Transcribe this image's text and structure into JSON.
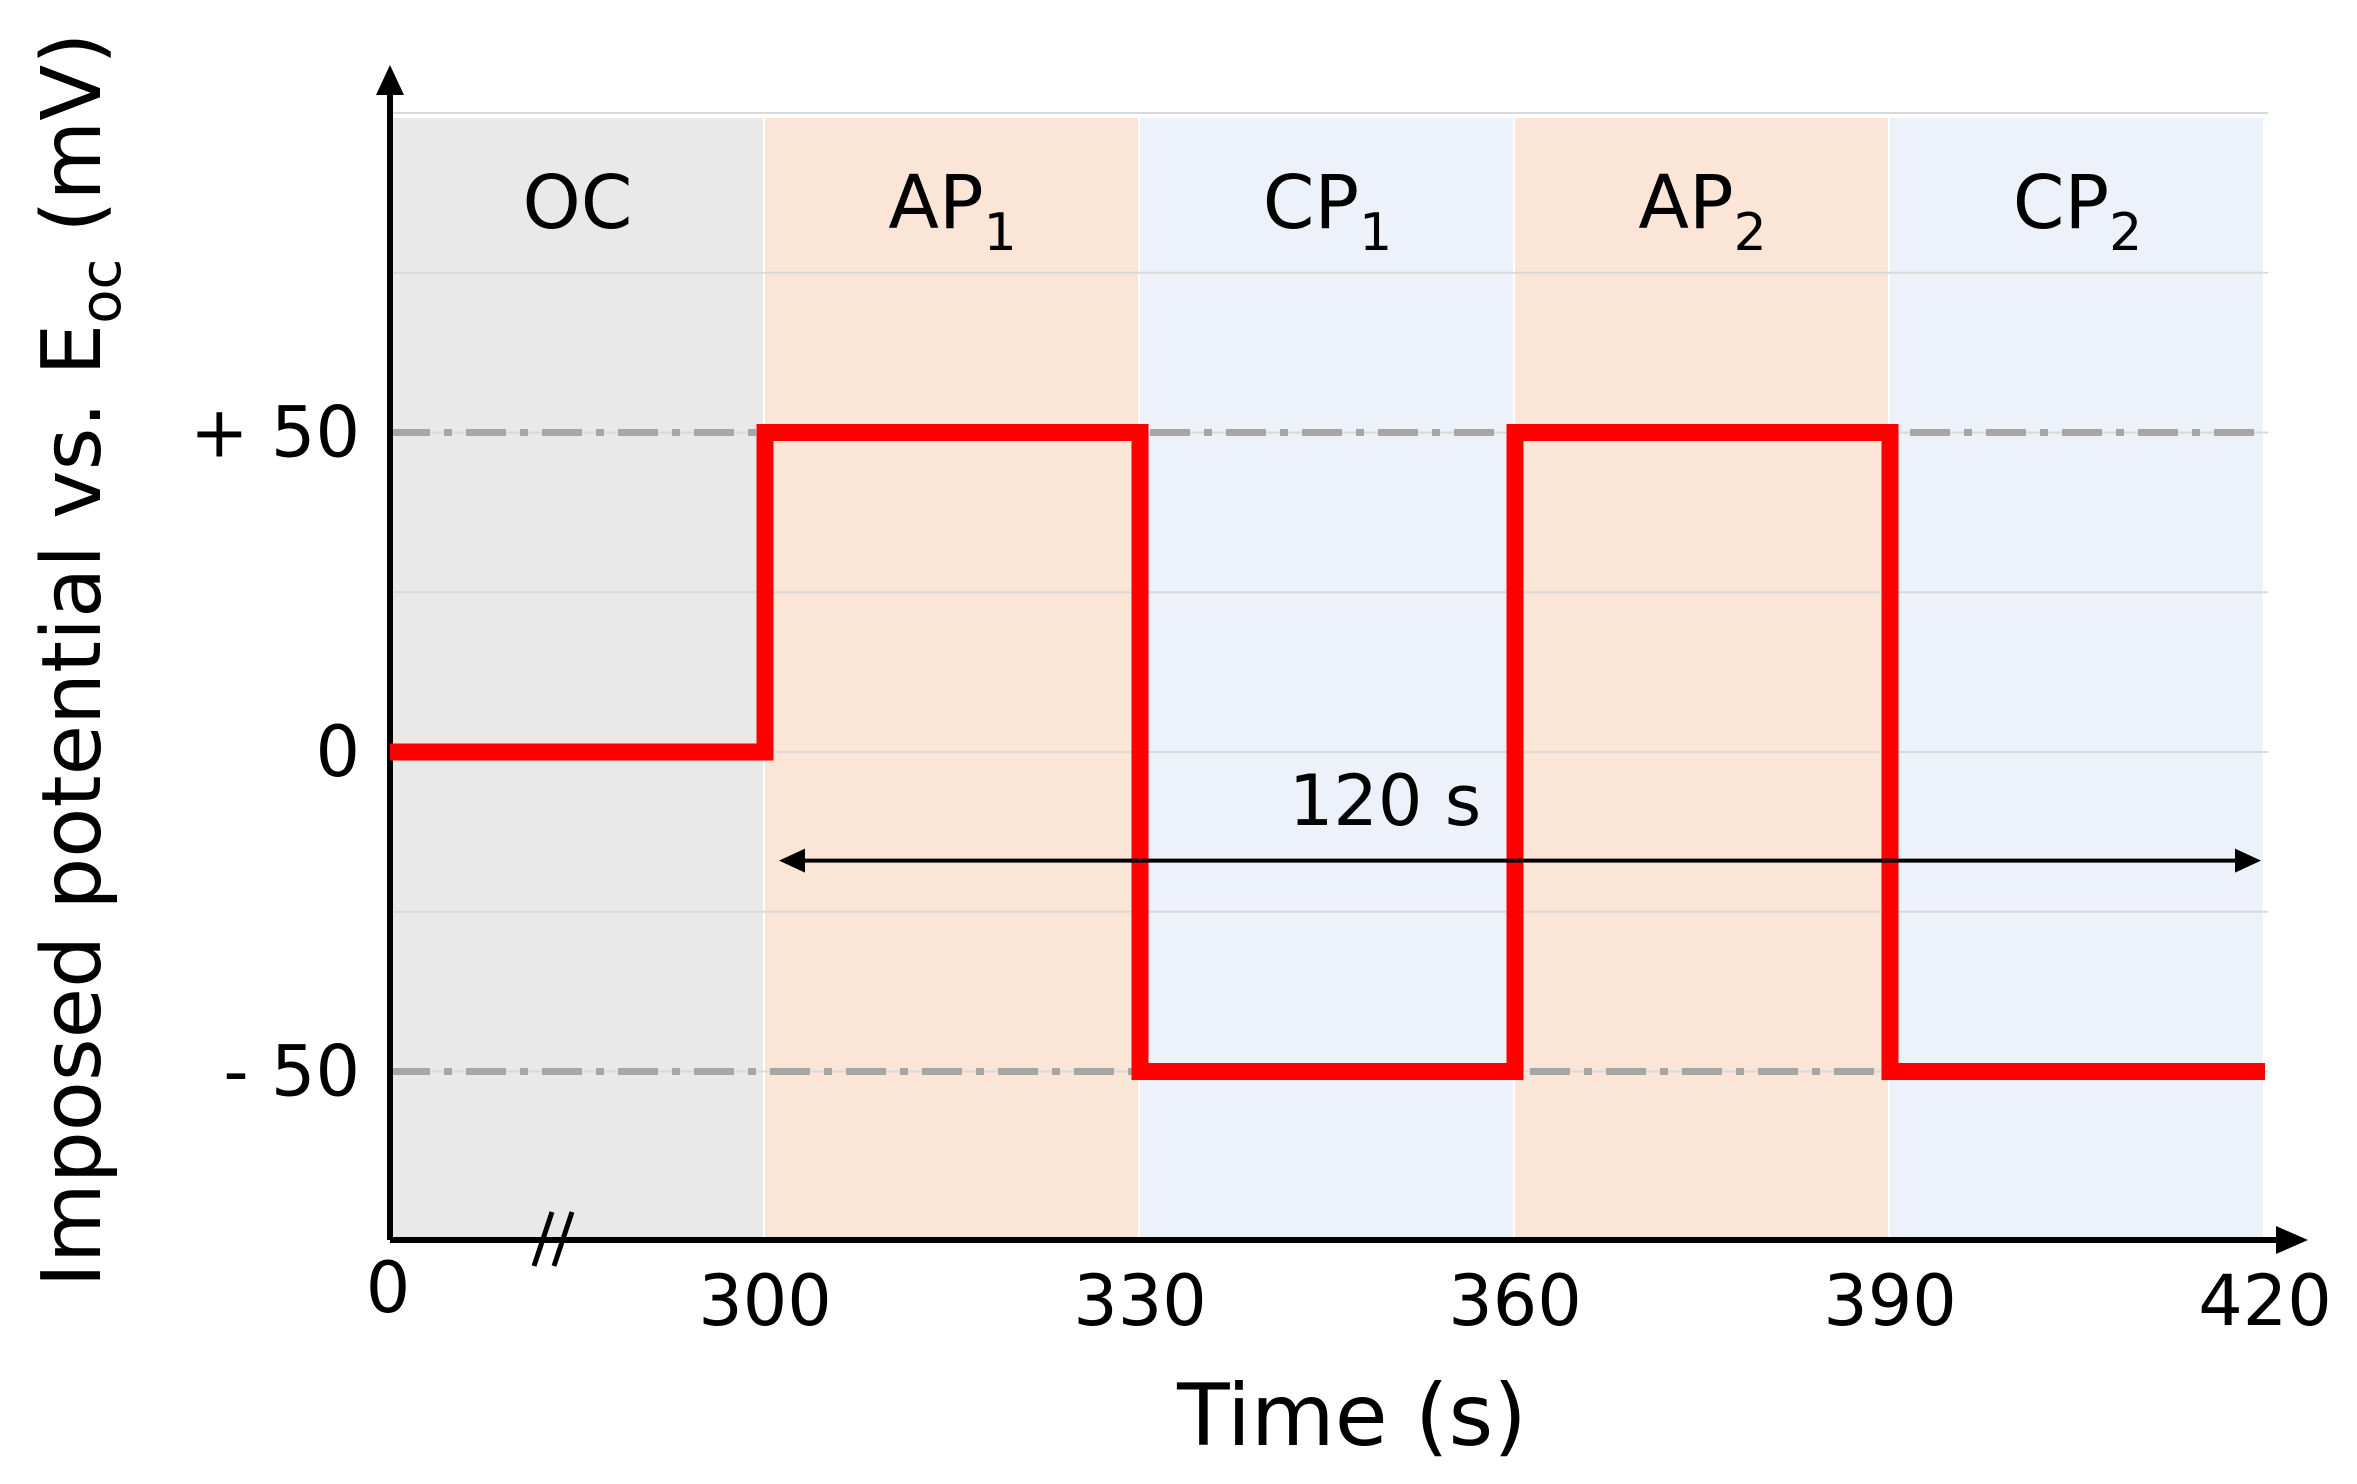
{
  "chart_data": {
    "type": "line",
    "title": "",
    "xlabel": "Time (s)",
    "ylabel": {
      "main": "Imposed potential vs. E",
      "sub": "oc",
      "unit": "(mV)"
    },
    "x_ticks": [
      "0",
      "300",
      "330",
      "360",
      "390",
      "420"
    ],
    "x_tick_values": [
      0,
      300,
      330,
      360,
      390,
      420
    ],
    "x_axis_break": "//",
    "y_ticks": [
      {
        "label": "+ 50",
        "value": 50
      },
      {
        "label": "0",
        "value": 0
      },
      {
        "label": "- 50",
        "value": -50
      }
    ],
    "ylim": [
      -75,
      100
    ],
    "xlim": [
      0,
      420
    ],
    "grid": true,
    "reference_lines": [
      50,
      -50
    ],
    "regions": [
      {
        "label": "OC",
        "sub": "",
        "start": 0,
        "end": 300,
        "color": "#e9e9e9"
      },
      {
        "label": "AP",
        "sub": "1",
        "start": 300,
        "end": 330,
        "color": "#fbe5d6"
      },
      {
        "label": "CP",
        "sub": "1",
        "start": 330,
        "end": 360,
        "color": "#edf1f9"
      },
      {
        "label": "AP",
        "sub": "2",
        "start": 360,
        "end": 390,
        "color": "#fbe5d6"
      },
      {
        "label": "CP",
        "sub": "2",
        "start": 390,
        "end": 420,
        "color": "#edf1f9"
      }
    ],
    "series": [
      {
        "color": "#ff0000",
        "x": [
          0,
          300,
          300,
          330,
          330,
          360,
          360,
          390,
          390,
          420
        ],
        "y": [
          0,
          0,
          50,
          50,
          -50,
          -50,
          50,
          50,
          -50,
          -50
        ]
      }
    ],
    "annotation": {
      "label": "120 s",
      "from": 300,
      "to": 420,
      "y": -17
    }
  }
}
